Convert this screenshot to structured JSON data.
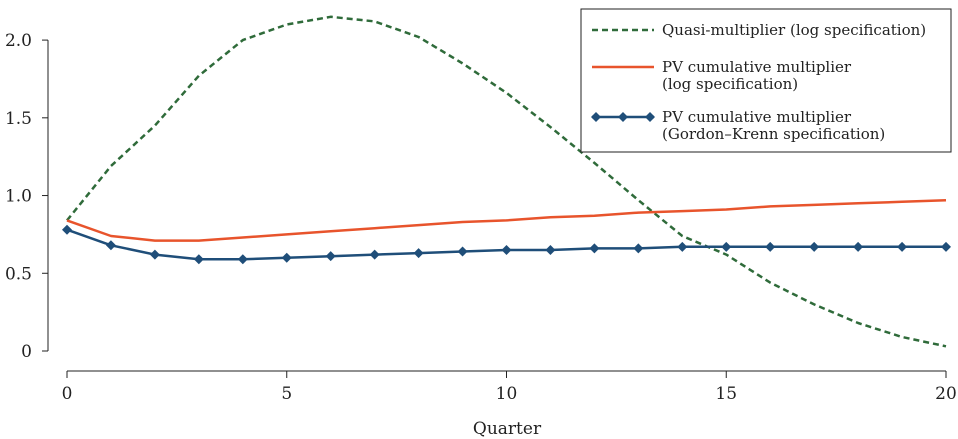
{
  "chart_data": {
    "type": "line",
    "xlabel": "Quarter",
    "ylabel": "",
    "xlim": [
      0,
      20
    ],
    "ylim": [
      0,
      2.2
    ],
    "x_ticks": [
      0,
      5,
      10,
      15,
      20
    ],
    "y_ticks": [
      0,
      0.5,
      1.0,
      1.5,
      2.0
    ],
    "y_tick_labels": [
      "0",
      "0.5",
      "1.0",
      "1.5",
      "2.0"
    ],
    "grid": false,
    "legend_position": "top-right",
    "x": [
      0,
      1,
      2,
      3,
      4,
      5,
      6,
      7,
      8,
      9,
      10,
      11,
      12,
      13,
      14,
      15,
      16,
      17,
      18,
      19,
      20
    ],
    "series": [
      {
        "name": "Quasi-multiplier (log specification)",
        "color": "#2f6b3a",
        "style": "dashed",
        "marker": "none",
        "values": [
          0.84,
          1.19,
          1.45,
          1.77,
          2.0,
          2.1,
          2.15,
          2.12,
          2.02,
          1.85,
          1.66,
          1.44,
          1.21,
          0.97,
          0.74,
          0.62,
          0.44,
          0.3,
          0.18,
          0.09,
          0.03
        ]
      },
      {
        "name": "PV cumulative multiplier\n(log specification)",
        "color": "#e8542c",
        "style": "solid",
        "marker": "none",
        "values": [
          0.84,
          0.74,
          0.71,
          0.71,
          0.73,
          0.75,
          0.77,
          0.79,
          0.81,
          0.83,
          0.84,
          0.86,
          0.87,
          0.89,
          0.9,
          0.91,
          0.93,
          0.94,
          0.95,
          0.96,
          0.97
        ]
      },
      {
        "name": "PV cumulative multiplier\n(Gordon–Krenn specification)",
        "color": "#1f4e79",
        "style": "solid",
        "marker": "diamond",
        "values": [
          0.78,
          0.68,
          0.62,
          0.59,
          0.59,
          0.6,
          0.61,
          0.62,
          0.63,
          0.64,
          0.65,
          0.65,
          0.66,
          0.66,
          0.67,
          0.67,
          0.67,
          0.67,
          0.67,
          0.67,
          0.67
        ]
      }
    ]
  }
}
